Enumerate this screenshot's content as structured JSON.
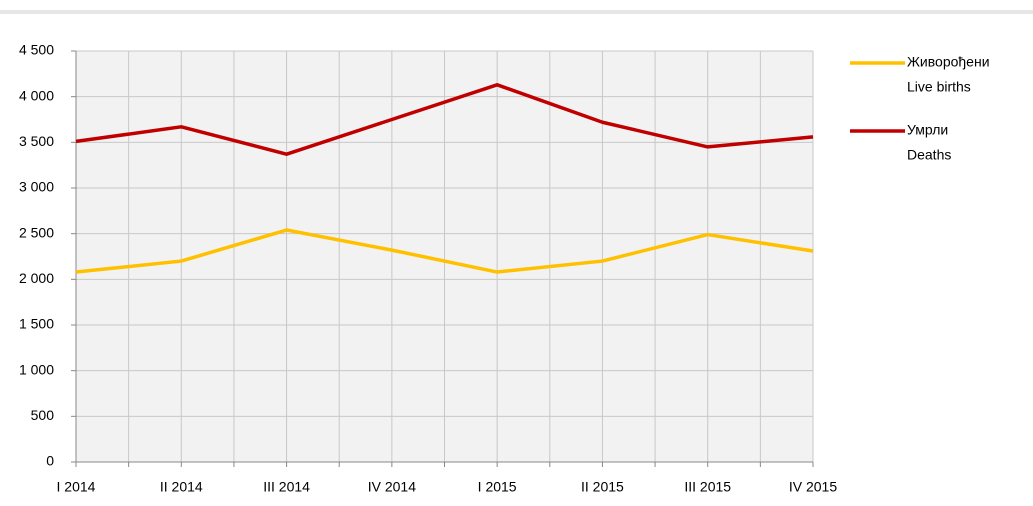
{
  "chart_data": {
    "type": "line",
    "categories": [
      "I 2014",
      "II 2014",
      "III 2014",
      "IV 2014",
      "I 2015",
      "II 2015",
      "III 2015",
      "IV 2015"
    ],
    "series": [
      {
        "name": [
          "Живорођени",
          "Live births"
        ],
        "color": "#ffc000",
        "values": [
          2080,
          2200,
          2540,
          2320,
          2080,
          2200,
          2490,
          2310
        ]
      },
      {
        "name": [
          "Умрли",
          "Deaths"
        ],
        "color": "#c00000",
        "values": [
          3510,
          3670,
          3370,
          3750,
          4130,
          3720,
          3450,
          3560
        ]
      }
    ],
    "ylim": [
      0,
      4500
    ],
    "yticks": [
      0,
      500,
      {
        "value": 1000,
        "label": "1 000"
      },
      {
        "value": 1500,
        "label": "1 500"
      },
      {
        "value": 2000,
        "label": "2 000"
      },
      {
        "value": 2500,
        "label": "2 500"
      },
      {
        "value": 3000,
        "label": "3 000"
      },
      {
        "value": 3500,
        "label": "3 500"
      },
      {
        "value": 4000,
        "label": "4 000"
      },
      {
        "value": 4500,
        "label": "4 500"
      }
    ],
    "grid": true,
    "legend": "right"
  }
}
